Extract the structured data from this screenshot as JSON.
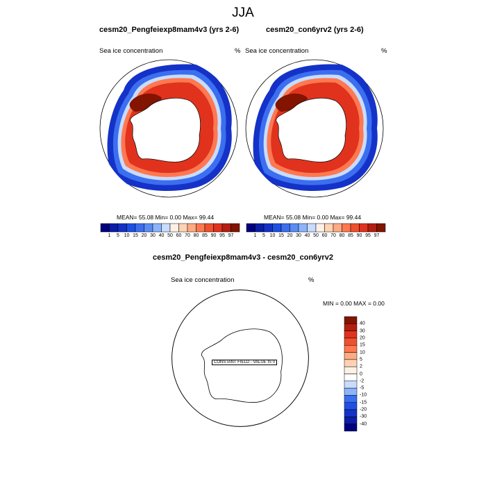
{
  "season": "JJA",
  "panels": [
    {
      "title": "cesm20_Pengfeiexp8mam4v3 (yrs 2-6)",
      "left_label": "Sea ice concentration",
      "right_label": "%",
      "stats": "MEAN=  55.08  Min=   0.00  Max=  99.44"
    },
    {
      "title": "cesm20_con6yrv2 (yrs 2-6)",
      "left_label": "Sea ice concentration",
      "right_label": "%",
      "stats": "MEAN=  55.08  Min=   0.00  Max=  99.44"
    }
  ],
  "colorbar": {
    "ticks": [
      "1",
      "5",
      "10",
      "15",
      "20",
      "30",
      "40",
      "50",
      "60",
      "70",
      "80",
      "85",
      "90",
      "95",
      "97"
    ],
    "colors": [
      "#000080",
      "#0a1ea8",
      "#1432c8",
      "#1e50e6",
      "#3c6ef0",
      "#5a8cf5",
      "#8cb4fa",
      "#c8dcff",
      "#fff0e6",
      "#ffd2b4",
      "#ffaa82",
      "#ff7850",
      "#f0502d",
      "#e1321e",
      "#b41e0f",
      "#821400"
    ]
  },
  "diff": {
    "title": "cesm20_Pengfeiexp8mam4v3 - cesm20_con6yrv2",
    "left_label": "Sea ice concentration",
    "right_label": "%",
    "minmax": "MIN =   0.00 MAX =   0.00",
    "constant_label": "CONSTANT FIELD - VALUE IS 0",
    "ticks": [
      "40",
      "30",
      "20",
      "15",
      "10",
      "5",
      "2",
      "0",
      "-2",
      "-5",
      "-10",
      "-15",
      "-20",
      "-30",
      "-40"
    ],
    "colors": [
      "#821400",
      "#b41e0f",
      "#e1321e",
      "#f0502d",
      "#ff7850",
      "#ffaa82",
      "#ffd2b4",
      "#fff0e6",
      "#ffffff",
      "#c8dcff",
      "#8cb4fa",
      "#3c6ef0",
      "#1e50e6",
      "#1432c8",
      "#0a1ea8",
      "#000080"
    ]
  }
}
